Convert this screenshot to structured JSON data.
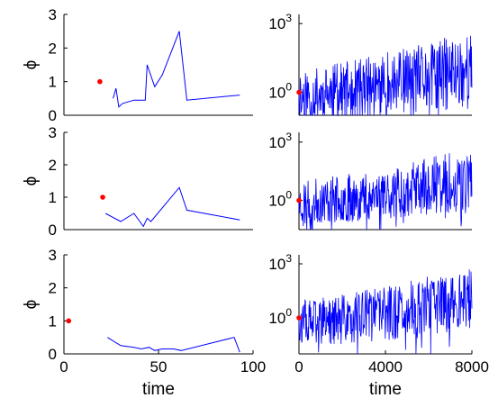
{
  "chart_data": [
    {
      "type": "line",
      "panel": "left-top",
      "ylabel": "ϕ",
      "xlabel": "",
      "xlim": [
        0,
        100
      ],
      "ylim": [
        0,
        3
      ],
      "yticks": [
        "0",
        "1",
        "2",
        "3"
      ],
      "xticks": [],
      "color": "#0000ff",
      "marker_color": "#ff0000",
      "marker": {
        "x": 19,
        "y": 1.0
      },
      "series": [
        {
          "x": [
            26,
            27.5,
            29,
            31,
            37,
            43,
            44,
            48,
            52,
            61,
            65,
            93
          ],
          "y": [
            0.5,
            0.8,
            0.25,
            0.35,
            0.45,
            0.45,
            1.5,
            0.85,
            1.2,
            2.5,
            0.45,
            0.6
          ]
        }
      ]
    },
    {
      "type": "line",
      "panel": "left-middle",
      "ylabel": "ϕ",
      "xlabel": "",
      "xlim": [
        0,
        100
      ],
      "ylim": [
        0,
        3
      ],
      "yticks": [
        "0",
        "1",
        "2",
        "3"
      ],
      "xticks": [],
      "color": "#0000ff",
      "marker_color": "#ff0000",
      "marker": {
        "x": 20.5,
        "y": 1.0
      },
      "series": [
        {
          "x": [
            22,
            30,
            37,
            42,
            44,
            46,
            61,
            65,
            93
          ],
          "y": [
            0.5,
            0.25,
            0.5,
            0.1,
            0.35,
            0.25,
            1.3,
            0.6,
            0.3
          ]
        }
      ]
    },
    {
      "type": "line",
      "panel": "left-bottom",
      "ylabel": "ϕ",
      "xlabel": "time",
      "xlim": [
        0,
        100
      ],
      "ylim": [
        0,
        3
      ],
      "yticks": [
        "0",
        "1",
        "2",
        "3"
      ],
      "xticks": [
        "0",
        "50",
        "100"
      ],
      "color": "#0000ff",
      "marker_color": "#ff0000",
      "marker": {
        "x": 2.5,
        "y": 1.0
      },
      "series": [
        {
          "x": [
            23,
            30,
            37,
            41,
            45,
            48,
            52,
            58,
            62,
            90,
            93
          ],
          "y": [
            0.5,
            0.25,
            0.2,
            0.15,
            0.2,
            0.1,
            0.15,
            0.15,
            0.1,
            0.5,
            0.05
          ]
        }
      ]
    },
    {
      "type": "line",
      "panel": "right-top",
      "yscale": "log",
      "xlabel": "",
      "xlim": [
        0,
        8000
      ],
      "ylim_exp": [
        -1.0,
        3.4
      ],
      "yticks": [
        {
          "base": "10",
          "exp": "0",
          "value_exp": 0
        },
        {
          "base": "10",
          "exp": "3",
          "value_exp": 3
        }
      ],
      "xticks": [],
      "color": "#0000ff",
      "marker_color": "#ff0000",
      "marker": {
        "x": 0,
        "y_exp": 0
      },
      "noisy_series": {
        "n": 400,
        "seed": 11,
        "start_exp": 0.0,
        "base_exp": -0.2,
        "trend_exp": 1.2,
        "spread_exp": 1.7
      }
    },
    {
      "type": "line",
      "panel": "right-middle",
      "yscale": "log",
      "xlabel": "",
      "xlim": [
        0,
        8000
      ],
      "ylim_exp": [
        -1.5,
        3.5
      ],
      "yticks": [
        {
          "base": "10",
          "exp": "0",
          "value_exp": 0
        },
        {
          "base": "10",
          "exp": "3",
          "value_exp": 3
        }
      ],
      "xticks": [],
      "color": "#0000ff",
      "marker_color": "#ff0000",
      "marker": {
        "x": 0,
        "y_exp": 0
      },
      "noisy_series": {
        "n": 400,
        "seed": 23,
        "start_exp": 0.0,
        "base_exp": -0.1,
        "trend_exp": 1.2,
        "spread_exp": 1.6
      }
    },
    {
      "type": "line",
      "panel": "right-bottom",
      "yscale": "log",
      "xlabel": "time",
      "xlim": [
        0,
        8000
      ],
      "ylim_exp": [
        -2.0,
        3.5
      ],
      "yticks": [
        {
          "base": "10",
          "exp": "0",
          "value_exp": 0
        },
        {
          "base": "10",
          "exp": "3",
          "value_exp": 3
        }
      ],
      "xticks": [
        "0",
        "4000",
        "8000"
      ],
      "color": "#0000ff",
      "marker_color": "#ff0000",
      "marker": {
        "x": 0,
        "y_exp": 0
      },
      "noisy_series": {
        "n": 400,
        "seed": 37,
        "start_exp": 0.0,
        "base_exp": -0.3,
        "trend_exp": 1.4,
        "spread_exp": 1.8
      }
    }
  ]
}
